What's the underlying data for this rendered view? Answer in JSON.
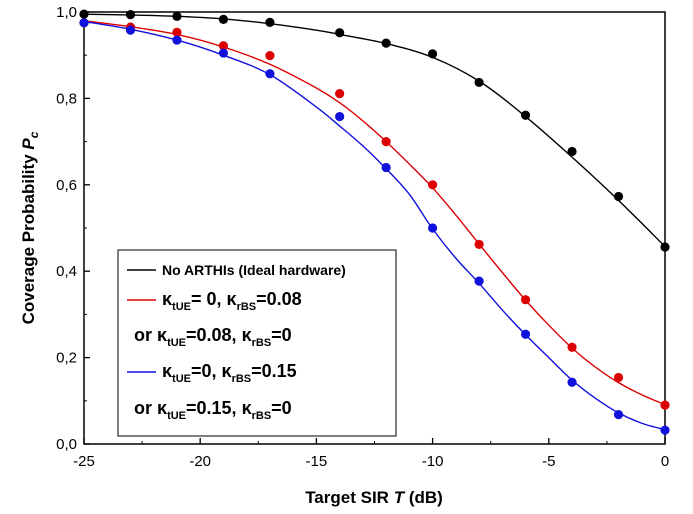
{
  "chart_data": {
    "type": "line",
    "xlabel": {
      "main": "Target SIR",
      "symbol": "T",
      "unit": "(dB)"
    },
    "ylabel": {
      "main": "Coverage Probability",
      "symbol": "P",
      "subscript": "c"
    },
    "xlim": [
      -25,
      0
    ],
    "ylim": [
      0.0,
      1.0
    ],
    "x_ticks": [
      -25,
      -20,
      -15,
      -10,
      -5,
      0
    ],
    "x_tick_labels": [
      "-25",
      "-20",
      "-15",
      "-10",
      "-5",
      "0"
    ],
    "y_ticks": [
      0.0,
      0.2,
      0.4,
      0.6,
      0.8,
      1.0
    ],
    "y_tick_labels": [
      "0,0",
      "0,2",
      "0,4",
      "0,6",
      "0,8",
      "1,0"
    ],
    "grid": false,
    "legend_position": "lower-left",
    "series": [
      {
        "color": "#000000",
        "line_x": [
          -25,
          -23,
          -21,
          -19,
          -17,
          -15,
          -14,
          -12,
          -10,
          -8,
          -6,
          -4,
          -2,
          0
        ],
        "line_y": [
          0.995,
          0.993,
          0.99,
          0.984,
          0.973,
          0.958,
          0.948,
          0.927,
          0.895,
          0.84,
          0.758,
          0.664,
          0.564,
          0.457
        ],
        "markers_x": [
          -25,
          -23,
          -21,
          -19,
          -17,
          -14,
          -12,
          -10,
          -8,
          -6,
          -4,
          -2,
          0
        ],
        "markers_y": [
          0.995,
          0.994,
          0.99,
          0.983,
          0.976,
          0.952,
          0.928,
          0.903,
          0.837,
          0.761,
          0.677,
          0.573,
          0.456
        ]
      },
      {
        "color": "#dd0000",
        "line_x": [
          -25,
          -23,
          -21,
          -19,
          -17,
          -15,
          -14,
          -13,
          -12,
          -11,
          -10,
          -9,
          -8,
          -7,
          -6,
          -5,
          -4,
          -3,
          -2,
          -1,
          0
        ],
        "line_y": [
          0.98,
          0.966,
          0.948,
          0.919,
          0.879,
          0.824,
          0.79,
          0.748,
          0.7,
          0.648,
          0.593,
          0.53,
          0.463,
          0.397,
          0.333,
          0.275,
          0.222,
          0.178,
          0.142,
          0.114,
          0.091
        ],
        "markers_x": [
          -25,
          -23,
          -21,
          -19,
          -17,
          -14,
          -12,
          -10,
          -8,
          -6,
          -4,
          -2,
          0
        ],
        "markers_y": [
          0.975,
          0.965,
          0.953,
          0.922,
          0.899,
          0.811,
          0.7,
          0.6,
          0.462,
          0.334,
          0.224,
          0.154,
          0.09
        ]
      },
      {
        "color": "#1111dd",
        "line_x": [
          -25,
          -23,
          -21,
          -19,
          -17,
          -15,
          -14,
          -13,
          -12,
          -11,
          -10,
          -9,
          -8,
          -7,
          -6,
          -5,
          -4,
          -3,
          -2,
          -1,
          0
        ],
        "line_y": [
          0.978,
          0.96,
          0.935,
          0.9,
          0.855,
          0.78,
          0.736,
          0.69,
          0.637,
          0.578,
          0.498,
          0.43,
          0.372,
          0.31,
          0.253,
          0.2,
          0.148,
          0.106,
          0.072,
          0.048,
          0.033
        ],
        "markers_x": [
          -25,
          -23,
          -21,
          -19,
          -17,
          -14,
          -12,
          -10,
          -8,
          -6,
          -4,
          -2,
          0
        ],
        "markers_y": [
          0.975,
          0.958,
          0.935,
          0.905,
          0.857,
          0.758,
          0.64,
          0.5,
          0.377,
          0.254,
          0.143,
          0.068,
          0.032
        ]
      }
    ],
    "legend": [
      {
        "color": "#000000",
        "line1": "No ARTHIs  (Ideal hardware)"
      },
      {
        "color": "#dd0000",
        "line1": [
          {
            "text": "κ"
          },
          {
            "text": "tUE",
            "sub": true
          },
          {
            "text": "= 0, "
          },
          {
            "text": "κ"
          },
          {
            "text": "rBS",
            "sub": true
          },
          {
            "text": "=0.08"
          }
        ],
        "line2": [
          {
            "text": "or "
          },
          {
            "text": "κ"
          },
          {
            "text": "tUE",
            "sub": true
          },
          {
            "text": "=0.08, "
          },
          {
            "text": "κ"
          },
          {
            "text": "rBS",
            "sub": true
          },
          {
            "text": "=0"
          }
        ]
      },
      {
        "color": "#1111dd",
        "line1": [
          {
            "text": "κ"
          },
          {
            "text": "tUE",
            "sub": true
          },
          {
            "text": "=0, "
          },
          {
            "text": "κ"
          },
          {
            "text": "rBS",
            "sub": true
          },
          {
            "text": "=0.15"
          }
        ],
        "line2": [
          {
            "text": "or "
          },
          {
            "text": "κ"
          },
          {
            "text": "tUE",
            "sub": true
          },
          {
            "text": "=0.15, "
          },
          {
            "text": "κ"
          },
          {
            "text": "rBS",
            "sub": true
          },
          {
            "text": "=0"
          }
        ]
      }
    ]
  }
}
